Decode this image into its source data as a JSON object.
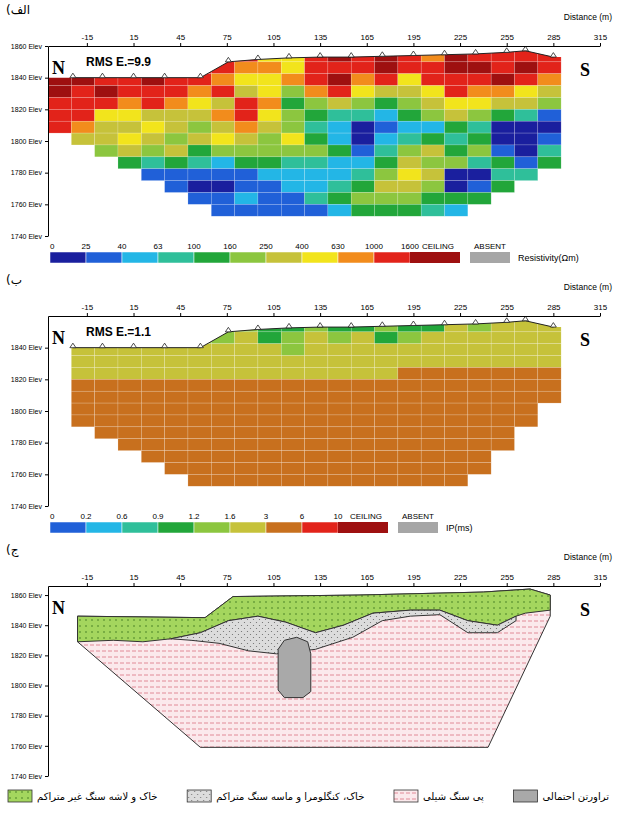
{
  "chart_data": [
    {
      "type": "heatmap",
      "panel_label": "الف)",
      "x_label": "Distance (m)",
      "annotations": {
        "rms": "RMS E.=9.9",
        "north": "N",
        "south": "S"
      },
      "xlim": [
        -40,
        315
      ],
      "xticks": [
        -15,
        15,
        45,
        75,
        105,
        135,
        165,
        195,
        225,
        255,
        285,
        315
      ],
      "ylim": [
        1740,
        1860
      ],
      "yticks": [
        {
          "value": 1860,
          "label": "1860 Elev"
        },
        {
          "value": 1840,
          "label": "1840 Elev"
        },
        {
          "value": 1820,
          "label": "1820 Elev"
        },
        {
          "value": 1800,
          "label": "1800 Elev"
        },
        {
          "value": 1780,
          "label": "1780 Elev"
        },
        {
          "value": 1760,
          "label": "1760 Elev"
        },
        {
          "value": 1740,
          "label": "1740 Elev"
        }
      ],
      "x_edges": [
        -40,
        -25,
        -10,
        5,
        20,
        35,
        50,
        65,
        80,
        95,
        110,
        125,
        140,
        155,
        170,
        185,
        200,
        215,
        230,
        245,
        260,
        275,
        290
      ],
      "y_edges": [
        1857.5,
        1850,
        1842.5,
        1835,
        1827.5,
        1820,
        1812.5,
        1805,
        1797.5,
        1790,
        1782.5,
        1775,
        1767.5,
        1760,
        1752.5
      ],
      "values": [
        [
          null,
          null,
          null,
          null,
          null,
          null,
          null,
          null,
          1300,
          500,
          500,
          1300,
          2000,
          1300,
          2000,
          1300,
          800,
          2000,
          1300,
          1300,
          1300,
          1300
        ],
        [
          null,
          null,
          null,
          null,
          null,
          null,
          1300,
          1300,
          800,
          800,
          500,
          1300,
          1300,
          1300,
          2000,
          1300,
          1300,
          2000,
          2000,
          1300,
          2000,
          1300
        ],
        [
          2000,
          2000,
          1300,
          1300,
          2000,
          1300,
          1300,
          800,
          500,
          500,
          800,
          1300,
          2000,
          800,
          1300,
          500,
          1300,
          1300,
          1300,
          2000,
          1300,
          800
        ],
        [
          2000,
          1300,
          2000,
          1300,
          1300,
          1300,
          800,
          1300,
          320,
          500,
          200,
          800,
          1300,
          500,
          320,
          320,
          500,
          1300,
          800,
          800,
          500,
          320
        ],
        [
          1300,
          1300,
          1300,
          800,
          1300,
          800,
          500,
          320,
          1300,
          800,
          130,
          200,
          320,
          200,
          130,
          200,
          320,
          500,
          500,
          320,
          320,
          200
        ],
        [
          1300,
          1300,
          500,
          500,
          320,
          320,
          320,
          800,
          1300,
          500,
          200,
          130,
          80,
          80,
          50,
          130,
          200,
          320,
          200,
          130,
          80,
          32
        ],
        [
          1300,
          800,
          320,
          320,
          500,
          320,
          200,
          320,
          800,
          320,
          200,
          80,
          50,
          15,
          32,
          50,
          50,
          130,
          80,
          15,
          15,
          15
        ],
        [
          null,
          320,
          320,
          500,
          320,
          200,
          320,
          500,
          320,
          200,
          500,
          130,
          50,
          15,
          50,
          80,
          130,
          80,
          130,
          15,
          15,
          32
        ],
        [
          null,
          null,
          200,
          320,
          200,
          320,
          130,
          200,
          200,
          200,
          200,
          200,
          130,
          32,
          80,
          200,
          320,
          130,
          200,
          32,
          15,
          80
        ],
        [
          null,
          null,
          null,
          130,
          80,
          130,
          80,
          50,
          130,
          130,
          80,
          80,
          50,
          50,
          130,
          320,
          200,
          200,
          80,
          130,
          32,
          130
        ],
        [
          null,
          null,
          null,
          null,
          32,
          32,
          32,
          32,
          32,
          50,
          50,
          50,
          50,
          80,
          200,
          500,
          320,
          15,
          15,
          80,
          80,
          null
        ],
        [
          null,
          null,
          null,
          null,
          null,
          32,
          15,
          15,
          32,
          32,
          50,
          50,
          80,
          130,
          320,
          320,
          200,
          15,
          32,
          130,
          null,
          null
        ],
        [
          null,
          null,
          null,
          null,
          null,
          null,
          32,
          32,
          50,
          32,
          32,
          80,
          130,
          200,
          200,
          200,
          130,
          130,
          130,
          null,
          null,
          null
        ],
        [
          null,
          null,
          null,
          null,
          null,
          null,
          null,
          32,
          32,
          32,
          32,
          32,
          50,
          130,
          130,
          130,
          80,
          50,
          null,
          null,
          null,
          null
        ]
      ],
      "topography": {
        "x": [
          -24,
          -5,
          15,
          35,
          58,
          76,
          95,
          115,
          135,
          155,
          175,
          195,
          215,
          235,
          255,
          267,
          285
        ],
        "elevation": [
          1840,
          1840,
          1840,
          1840,
          1840,
          1850,
          1851.5,
          1852.5,
          1853,
          1853,
          1853.5,
          1854,
          1854.5,
          1855,
          1856,
          1857,
          1853
        ]
      },
      "colorbar": {
        "title": "Resistivity(Ωm)",
        "ticks": [
          0,
          25,
          40,
          63,
          100,
          160,
          250,
          400,
          630,
          1000,
          1600
        ],
        "colors": [
          "#1a1f9e",
          "#2060d8",
          "#23b6e6",
          "#2fbf9a",
          "#22a63a",
          "#8cc63f",
          "#c6c23a",
          "#f2e41c",
          "#f28c1c",
          "#e2231a"
        ],
        "ceiling": "CEILING",
        "ceiling_color": "#9e1010",
        "absent": "ABSENT",
        "absent_color": "#a6a6a6"
      }
    },
    {
      "type": "heatmap",
      "panel_label": "ب)",
      "x_label": "Distance (m)",
      "annotations": {
        "rms": "RMS E.=1.1",
        "north": "N",
        "south": "S"
      },
      "xlim": [
        -40,
        315
      ],
      "xticks": [
        -15,
        15,
        45,
        75,
        105,
        135,
        165,
        195,
        225,
        255,
        285,
        315
      ],
      "ylim": [
        1740,
        1860
      ],
      "yticks": [
        {
          "value": 1840,
          "label": "1840 Elev"
        },
        {
          "value": 1820,
          "label": "1820 Elev"
        },
        {
          "value": 1800,
          "label": "1800 Elev"
        },
        {
          "value": 1780,
          "label": "1780 Elev"
        },
        {
          "value": 1760,
          "label": "1760 Elev"
        },
        {
          "value": 1740,
          "label": "1740 Elev"
        }
      ],
      "x_edges": [
        -40,
        -25,
        -10,
        5,
        20,
        35,
        50,
        65,
        80,
        95,
        110,
        125,
        140,
        155,
        170,
        185,
        200,
        215,
        230,
        245,
        260,
        275,
        290
      ],
      "y_edges": [
        1857.5,
        1850,
        1842.5,
        1835,
        1827.5,
        1820,
        1812.5,
        1805,
        1797.5,
        1790,
        1782.5,
        1775,
        1767.5,
        1760,
        1752.5
      ],
      "values": [
        [
          null,
          null,
          null,
          null,
          null,
          null,
          null,
          null,
          1.4,
          1,
          1,
          1.4,
          1,
          1,
          1.4,
          1,
          1,
          2.2,
          1.4,
          2.2,
          2.2,
          2.2
        ],
        [
          null,
          null,
          null,
          null,
          null,
          null,
          1.4,
          1.4,
          2.2,
          1,
          1.4,
          2.2,
          1.4,
          2.2,
          1,
          1.4,
          2.2,
          2.2,
          2.2,
          2.2,
          2.2,
          2.2
        ],
        [
          null,
          2.2,
          2.2,
          2.2,
          2.2,
          2.2,
          2.2,
          2.2,
          2.2,
          2.2,
          1.4,
          2.2,
          2.2,
          2.2,
          2.2,
          2.2,
          2.2,
          2.2,
          2.2,
          2.2,
          2.2,
          2.2
        ],
        [
          null,
          2.2,
          2.2,
          2.2,
          2.2,
          2.2,
          2.2,
          2.2,
          2.2,
          2.2,
          2.2,
          2.2,
          2.2,
          2.2,
          2.2,
          2.2,
          2.2,
          2.2,
          2.2,
          2.2,
          2.2,
          2.2
        ],
        [
          null,
          2.2,
          2.2,
          2.2,
          2.2,
          2.2,
          2.2,
          2.2,
          2.2,
          2.2,
          2.2,
          2.2,
          2.2,
          2.2,
          2.2,
          4.5,
          4.5,
          4.5,
          4.5,
          4.5,
          4.5,
          4.5
        ],
        [
          null,
          4.5,
          4.5,
          4.5,
          4.5,
          4.5,
          4.5,
          4.5,
          4.5,
          4.5,
          4.5,
          4.5,
          4.5,
          4.5,
          4.5,
          4.5,
          4.5,
          4.5,
          4.5,
          4.5,
          4.5,
          4.5
        ],
        [
          null,
          4.5,
          4.5,
          4.5,
          4.5,
          4.5,
          4.5,
          4.5,
          4.5,
          4.5,
          4.5,
          4.5,
          4.5,
          4.5,
          4.5,
          4.5,
          4.5,
          4.5,
          4.5,
          4.5,
          4.5,
          4.5
        ],
        [
          null,
          4.5,
          4.5,
          4.5,
          4.5,
          4.5,
          4.5,
          4.5,
          4.5,
          4.5,
          4.5,
          4.5,
          4.5,
          4.5,
          4.5,
          4.5,
          4.5,
          4.5,
          4.5,
          4.5,
          4.5,
          null
        ],
        [
          null,
          4.5,
          4.5,
          4.5,
          4.5,
          4.5,
          4.5,
          4.5,
          4.5,
          4.5,
          4.5,
          4.5,
          4.5,
          4.5,
          4.5,
          4.5,
          4.5,
          4.5,
          4.5,
          4.5,
          4.5,
          null
        ],
        [
          null,
          null,
          4.5,
          4.5,
          4.5,
          4.5,
          4.5,
          4.5,
          4.5,
          4.5,
          4.5,
          4.5,
          4.5,
          4.5,
          4.5,
          4.5,
          4.5,
          4.5,
          4.5,
          4.5,
          null,
          null
        ],
        [
          null,
          null,
          null,
          4.5,
          4.5,
          4.5,
          4.5,
          4.5,
          4.5,
          4.5,
          4.5,
          4.5,
          4.5,
          4.5,
          4.5,
          4.5,
          4.5,
          4.5,
          4.5,
          4.5,
          null,
          null
        ],
        [
          null,
          null,
          null,
          null,
          4.5,
          4.5,
          4.5,
          4.5,
          4.5,
          4.5,
          4.5,
          4.5,
          4.5,
          4.5,
          4.5,
          4.5,
          4.5,
          4.5,
          4.5,
          null,
          null,
          null
        ],
        [
          null,
          null,
          null,
          null,
          null,
          4.5,
          4.5,
          4.5,
          4.5,
          4.5,
          4.5,
          4.5,
          4.5,
          4.5,
          4.5,
          4.5,
          4.5,
          4.5,
          4.5,
          null,
          null,
          null
        ],
        [
          null,
          null,
          null,
          null,
          null,
          null,
          4.5,
          4.5,
          4.5,
          4.5,
          4.5,
          4.5,
          4.5,
          4.5,
          4.5,
          4.5,
          4.5,
          4.5,
          null,
          null,
          null,
          null
        ]
      ],
      "topography": {
        "x": [
          -24,
          -5,
          15,
          35,
          58,
          76,
          95,
          115,
          135,
          155,
          175,
          195,
          215,
          235,
          255,
          267,
          285
        ],
        "elevation": [
          1840,
          1840,
          1840,
          1840,
          1840,
          1850,
          1851.5,
          1852.5,
          1853,
          1853,
          1853.5,
          1854,
          1854.5,
          1855,
          1856,
          1857,
          1853
        ]
      },
      "colorbar": {
        "title": "IP(ms)",
        "ticks": [
          0,
          0.2,
          0.6,
          0.9,
          1.2,
          1.6,
          3,
          6,
          10
        ],
        "colors": [
          "#2060d8",
          "#23b6e6",
          "#2fbf9a",
          "#22a63a",
          "#8cc63f",
          "#c6c23a",
          "#c8701e",
          "#e2231a"
        ],
        "ceiling": "CEILING",
        "ceiling_color": "#9e1010",
        "absent": "ABSENT",
        "absent_color": "#a6a6a6"
      }
    },
    {
      "type": "section",
      "panel_label": "ج)",
      "x_label": "Distance (m)",
      "annotations": {
        "north": "N",
        "south": "S"
      },
      "xlim": [
        -40,
        315
      ],
      "xticks": [
        -15,
        15,
        45,
        75,
        105,
        135,
        165,
        195,
        225,
        255,
        285,
        315
      ],
      "ylim": [
        1740,
        1866
      ],
      "yticks": [
        {
          "value": 1860,
          "label": "1860 Elev"
        },
        {
          "value": 1840,
          "label": "1840 Elev"
        },
        {
          "value": 1820,
          "label": "1820 Elev"
        },
        {
          "value": 1800,
          "label": "1800 Elev"
        },
        {
          "value": 1780,
          "label": "1780 Elev"
        },
        {
          "value": 1760,
          "label": "1760 Elev"
        },
        {
          "value": 1740,
          "label": "1740 Elev"
        }
      ],
      "legend": "bottom",
      "series": [
        {
          "name": "خاک و لاشه سنگ غیر متراکم",
          "color": "#a4d65e",
          "x": [
            -21,
            61,
            79,
            160,
            240,
            270,
            283,
            283,
            267,
            261,
            249,
            230,
            212,
            193,
            169,
            150,
            132,
            113,
            95,
            76,
            58,
            39,
            21,
            2,
            -21
          ],
          "values": [
            1846,
            1845,
            1859,
            1860,
            1862,
            1864,
            1860,
            1850,
            1848,
            1846,
            1840,
            1843,
            1850,
            1850,
            1848,
            1840,
            1835,
            1842,
            1846,
            1843,
            1835,
            1831,
            1829,
            1830,
            1829
          ]
        },
        {
          "name": "خاک، کنگلومرا و ماسه سنگ متراکم",
          "color": "#dcdcdc",
          "x": [
            39,
            58,
            76,
            95,
            113,
            132,
            150,
            169,
            193,
            212,
            230,
            249,
            261,
            261,
            249,
            230,
            212,
            193,
            175,
            156,
            132,
            107,
            89,
            70,
            52
          ],
          "values": [
            1831,
            1835,
            1843,
            1846,
            1842,
            1835,
            1840,
            1848,
            1850,
            1850,
            1843,
            1840,
            1846,
            1843,
            1835,
            1835,
            1847,
            1846,
            1843,
            1832,
            1824,
            1821,
            1823,
            1828,
            1830
          ]
        },
        {
          "name": "پی سنگ شیلی",
          "color": "#fbe9ec",
          "x": [
            -21,
            61,
            79,
            160,
            240,
            270,
            283,
            283,
            243,
            58,
            -21
          ],
          "values": [
            1846,
            1845,
            1859,
            1860,
            1862,
            1864,
            1860,
            1846,
            1759,
            1759,
            1829
          ]
        },
        {
          "name": "تراورتن احتمالی",
          "color": "#a9a9a9",
          "x": [
            108,
            112,
            120,
            127,
            129,
            129,
            124,
            112,
            108
          ],
          "values": [
            1824,
            1830,
            1832,
            1829,
            1821,
            1796,
            1792,
            1792,
            1797
          ]
        }
      ]
    }
  ]
}
